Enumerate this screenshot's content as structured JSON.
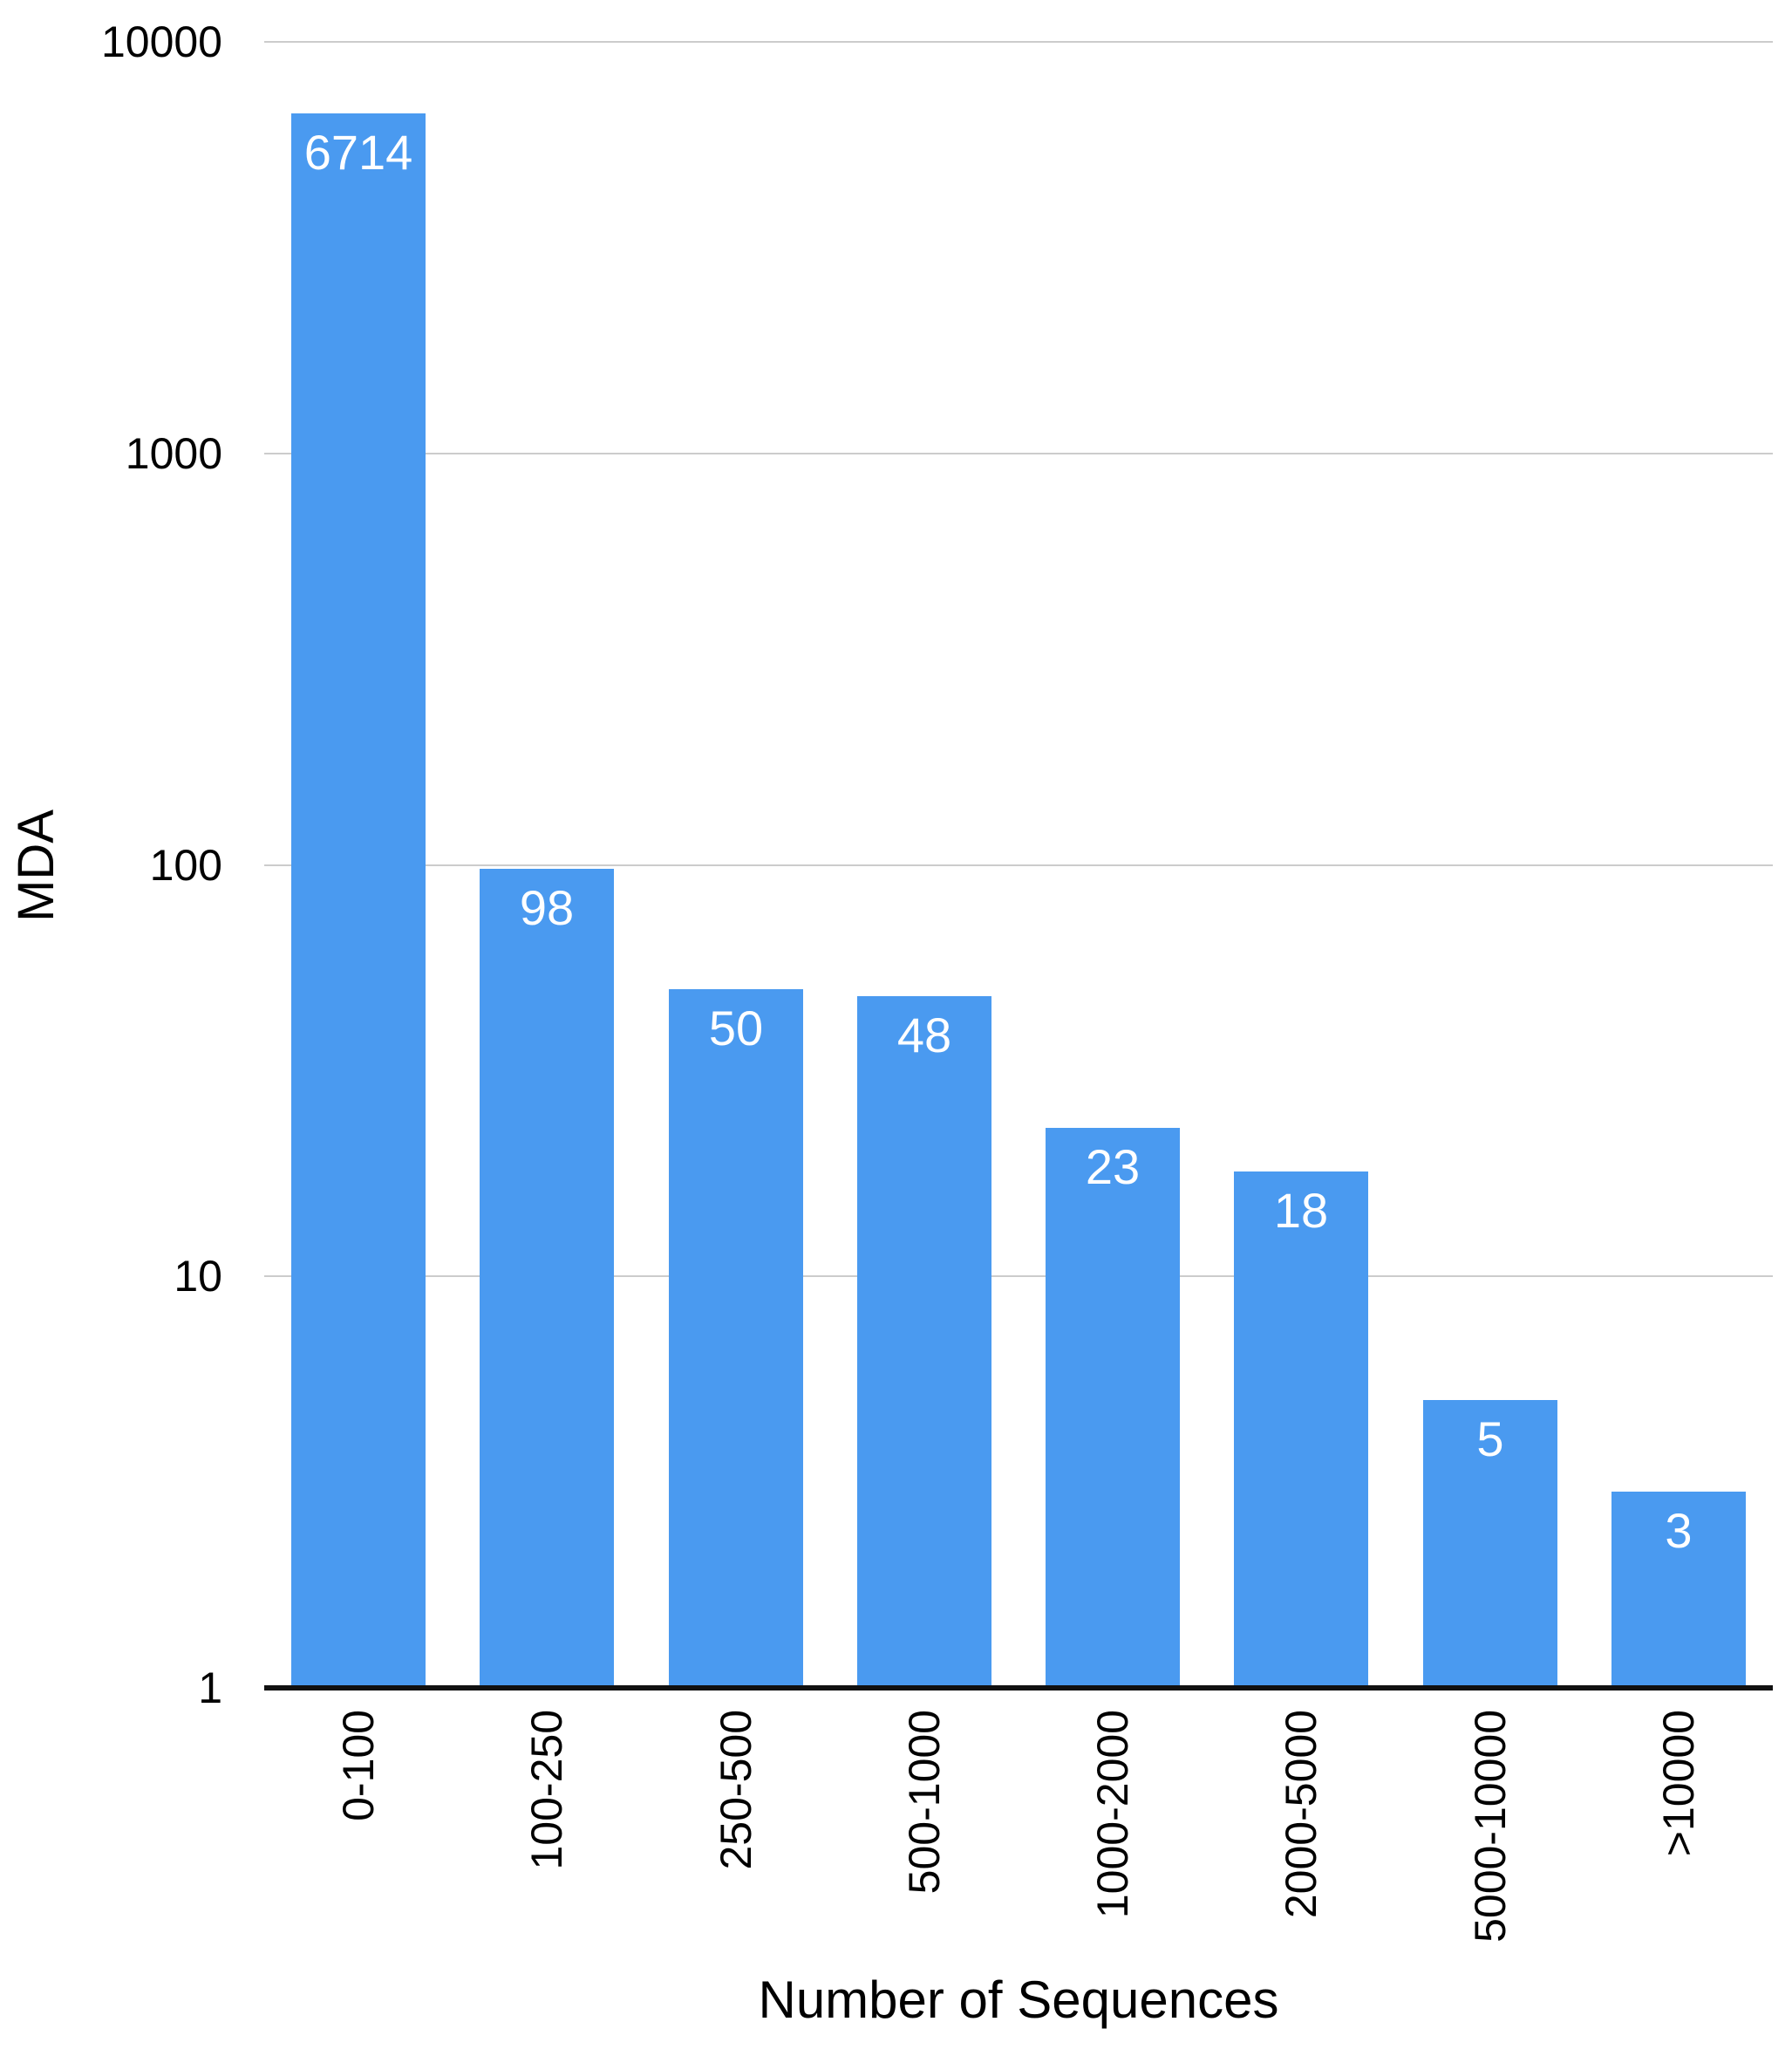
{
  "chart_data": {
    "type": "bar",
    "title": "",
    "xlabel": "Number of Sequences",
    "ylabel": "MDA",
    "categories": [
      "0-100",
      "100-250",
      "250-500",
      "500-1000",
      "1000-2000",
      "2000-5000",
      "5000-10000",
      ">10000"
    ],
    "values": [
      6714,
      98,
      50,
      48,
      23,
      18,
      5,
      3
    ],
    "value_labels": [
      "6714",
      "98",
      "50",
      "48",
      "23",
      "18",
      "5",
      "3"
    ],
    "y_scale": "log",
    "ylim": [
      1,
      10000
    ],
    "y_ticks": [
      1,
      10,
      100,
      1000,
      10000
    ],
    "y_tick_labels": [
      "1",
      "10",
      "100",
      "1000",
      "10000"
    ],
    "grid": "horizontal",
    "legend_position": "none",
    "bar_color": "#4A9AF0",
    "value_label_color": "#FFFFFF",
    "gridline_color": "#CCCCCC",
    "axis_line_color": "#111111",
    "text_color": "#000000",
    "background_color": "#FFFFFF"
  }
}
